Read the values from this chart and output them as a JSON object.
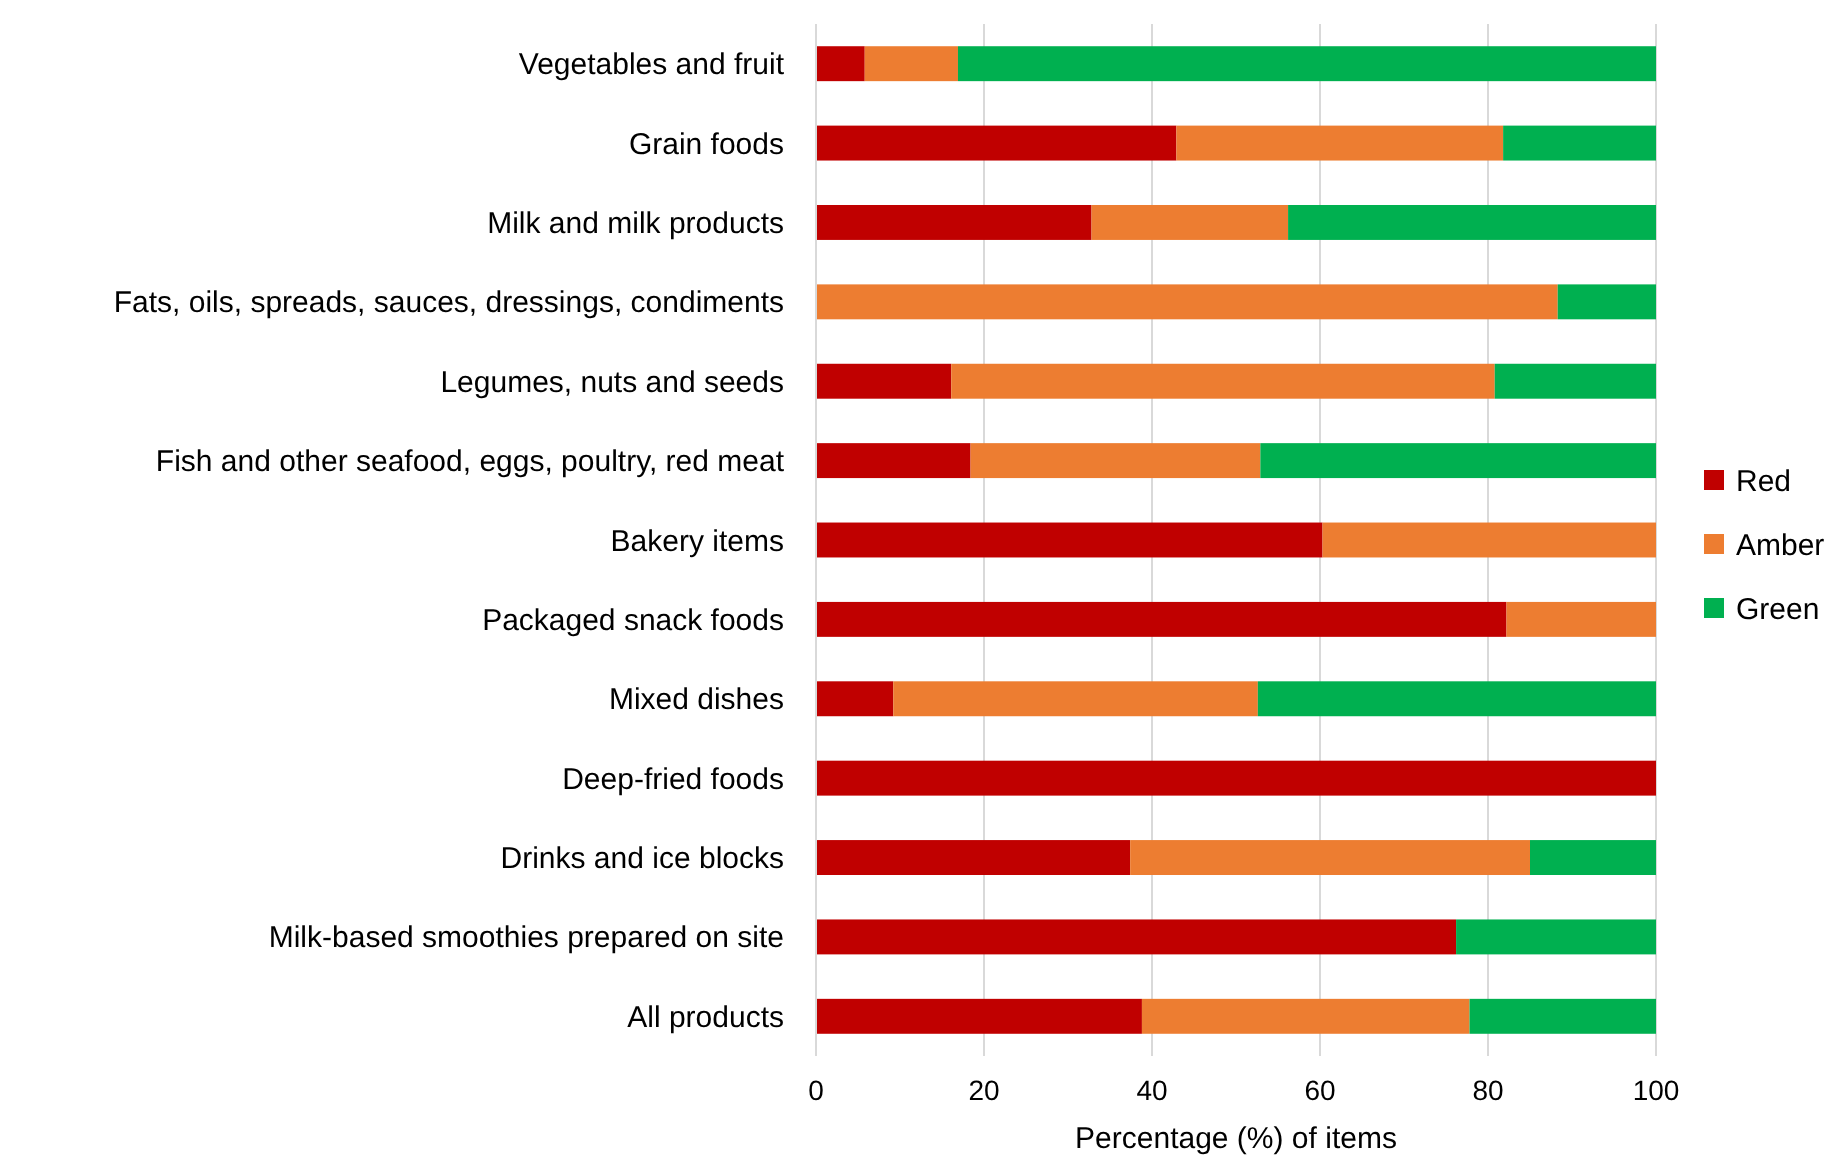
{
  "chart_data": {
    "type": "bar",
    "orientation": "horizontal",
    "stacked": true,
    "xlabel": "Percentage (%) of items",
    "categories": [
      "Vegetables and fruit",
      "Grain foods",
      "Milk and milk products",
      "Fats, oils, spreads, sauces, dressings, condiments",
      "Legumes, nuts and seeds",
      "Fish and other seafood, eggs, poultry, red meat",
      "Bakery items",
      "Packaged snack foods",
      "Mixed dishes",
      "Deep-fried foods",
      "Drinks and ice blocks",
      "Milk-based smoothies prepared on site",
      "All products"
    ],
    "series": [
      {
        "name": "Red",
        "color": "#c00000",
        "values": [
          5.8,
          42.9,
          32.8,
          0,
          16.1,
          18.4,
          60.3,
          82.2,
          9.2,
          100,
          37.4,
          76.2,
          38.8
        ]
      },
      {
        "name": "Amber",
        "color": "#ed7d31",
        "values": [
          11.1,
          38.9,
          23.4,
          88.3,
          64.7,
          34.5,
          39.7,
          17.8,
          43.4,
          0,
          47.6,
          0,
          39.0
        ]
      },
      {
        "name": "Green",
        "color": "#00b050",
        "values": [
          83.1,
          18.2,
          43.8,
          11.7,
          19.2,
          47.1,
          0,
          0,
          47.4,
          0,
          15.0,
          23.8,
          22.2
        ]
      }
    ],
    "xlim": [
      0,
      100
    ],
    "xticks": [
      0,
      20,
      40,
      60,
      80,
      100
    ],
    "grid": "x",
    "legend": "right"
  }
}
